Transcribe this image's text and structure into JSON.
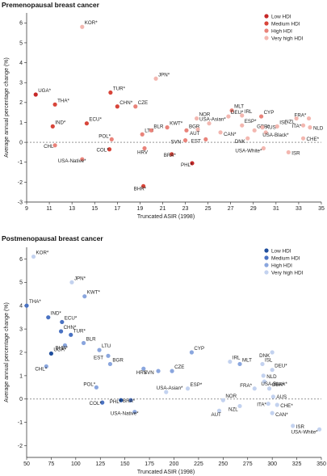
{
  "chart_data": [
    {
      "type": "scatter",
      "title": "Premenopausal breast cancer",
      "xlabel": "Truncated ASIR (1998)",
      "ylabel": "Average annual percentage change (%)",
      "xlim": [
        9,
        35
      ],
      "ylim": [
        -3,
        6.5
      ],
      "xticks": [
        9,
        11,
        13,
        15,
        17,
        19,
        21,
        23,
        25,
        27,
        29,
        31,
        33,
        35
      ],
      "yticks": [
        -3,
        -2,
        -1,
        0,
        1,
        2,
        3,
        4,
        5,
        6
      ],
      "legend_position": "top-right",
      "legend": [
        {
          "name": "Low HDI",
          "color": "#c62828"
        },
        {
          "name": "Medium HDI",
          "color": "#d8453a"
        },
        {
          "name": "High HDI",
          "color": "#e9837a"
        },
        {
          "name": "Very high HDI",
          "color": "#f3b7b0"
        }
      ],
      "points": [
        {
          "label": "KOR*",
          "x": 13.9,
          "y": 5.8,
          "hdi": 3
        },
        {
          "label": "UGA*",
          "x": 9.8,
          "y": 2.4,
          "hdi": 0
        },
        {
          "label": "THA*",
          "x": 11.5,
          "y": 1.9,
          "hdi": 1
        },
        {
          "label": "IND*",
          "x": 11.3,
          "y": 0.8,
          "hdi": 1
        },
        {
          "label": "ECU*",
          "x": 14.3,
          "y": 0.95,
          "hdi": 1
        },
        {
          "label": "TUR*",
          "x": 16.4,
          "y": 2.5,
          "hdi": 1
        },
        {
          "label": "CHN*",
          "x": 17.0,
          "y": 1.8,
          "hdi": 1
        },
        {
          "label": "CZE",
          "x": 18.6,
          "y": 1.8,
          "hdi": 2
        },
        {
          "label": "JPN*",
          "x": 20.4,
          "y": 3.2,
          "hdi": 3
        },
        {
          "label": "CHL",
          "x": 11.5,
          "y": -0.15,
          "hdi": 2
        },
        {
          "label": "USA-Native*",
          "x": 13.9,
          "y": -0.85,
          "hdi": 2
        },
        {
          "label": "COL*",
          "x": 16.3,
          "y": -0.35,
          "hdi": 1
        },
        {
          "label": "POL*",
          "x": 16.5,
          "y": 0.15,
          "hdi": 2
        },
        {
          "label": "LTU",
          "x": 19.2,
          "y": 0.4,
          "hdi": 2
        },
        {
          "label": "BLR",
          "x": 20.0,
          "y": 0.6,
          "hdi": 2
        },
        {
          "label": "HRV",
          "x": 19.4,
          "y": -0.3,
          "hdi": 2
        },
        {
          "label": "KWT*",
          "x": 21.4,
          "y": 0.75,
          "hdi": 2
        },
        {
          "label": "BRA*",
          "x": 21.8,
          "y": -0.6,
          "hdi": 1
        },
        {
          "label": "BHR*",
          "x": 19.3,
          "y": -2.2,
          "hdi": 1
        },
        {
          "label": "BGR",
          "x": 23.1,
          "y": 0.6,
          "hdi": 2
        },
        {
          "label": "NOR",
          "x": 24.0,
          "y": 1.2,
          "hdi": 3
        },
        {
          "label": "SVN",
          "x": 23.0,
          "y": 0.1,
          "hdi": 2
        },
        {
          "label": "AUT",
          "x": 24.1,
          "y": 0.65,
          "hdi": 3
        },
        {
          "label": "EST",
          "x": 24.8,
          "y": 0.15,
          "hdi": 2
        },
        {
          "label": "PHL*",
          "x": 23.6,
          "y": -1.05,
          "hdi": 0
        },
        {
          "label": "MLT",
          "x": 27.1,
          "y": 1.6,
          "hdi": 2
        },
        {
          "label": "DEU*",
          "x": 26.8,
          "y": 1.3,
          "hdi": 3
        },
        {
          "label": "IRL",
          "x": 28.0,
          "y": 1.35,
          "hdi": 3
        },
        {
          "label": "USA-Asian*",
          "x": 25.1,
          "y": 0.95,
          "hdi": 3
        },
        {
          "label": "CAN*",
          "x": 26.1,
          "y": 0.5,
          "hdi": 3
        },
        {
          "label": "ESP*",
          "x": 28.0,
          "y": 0.85,
          "hdi": 3
        },
        {
          "label": "GBR*",
          "x": 29.1,
          "y": 0.6,
          "hdi": 3
        },
        {
          "label": "DNK",
          "x": 28.5,
          "y": 0.2,
          "hdi": 3
        },
        {
          "label": "CYP",
          "x": 29.7,
          "y": 1.3,
          "hdi": 2
        },
        {
          "label": "AUS",
          "x": 29.8,
          "y": 0.75,
          "hdi": 3
        },
        {
          "label": "ISL",
          "x": 31.1,
          "y": 0.8,
          "hdi": 3
        },
        {
          "label": "USA-Black*",
          "x": 30.1,
          "y": 0.5,
          "hdi": 3
        },
        {
          "label": "USA-White*",
          "x": 29.9,
          "y": -0.3,
          "hdi": 3
        },
        {
          "label": "NZL",
          "x": 32.8,
          "y": 1.2,
          "hdi": 3
        },
        {
          "label": "FRA*",
          "x": 33.9,
          "y": 1.2,
          "hdi": 3
        },
        {
          "label": "ITA*",
          "x": 33.4,
          "y": 0.85,
          "hdi": 3
        },
        {
          "label": "NLD",
          "x": 34.0,
          "y": 0.75,
          "hdi": 3
        },
        {
          "label": "CHE*",
          "x": 33.4,
          "y": 0.2,
          "hdi": 3
        },
        {
          "label": "ISR",
          "x": 32.1,
          "y": -0.5,
          "hdi": 3
        }
      ]
    },
    {
      "type": "scatter",
      "title": "Postmenopausal breast cancer",
      "xlabel": "Truncated ASIR (1998)",
      "ylabel": "Average annual percentage change (%)",
      "xlim": [
        50,
        350
      ],
      "ylim": [
        -2.5,
        6.5
      ],
      "xticks": [
        50,
        75,
        100,
        125,
        150,
        175,
        200,
        225,
        250,
        275,
        300,
        325,
        350
      ],
      "yticks": [
        -2,
        -1,
        0,
        1,
        2,
        3,
        4,
        5,
        6
      ],
      "legend_position": "top-right",
      "legend": [
        {
          "name": "Low HDI",
          "color": "#1f4e9c"
        },
        {
          "name": "Medium HDI",
          "color": "#4a72c2"
        },
        {
          "name": "High HDI",
          "color": "#8aa6de"
        },
        {
          "name": "Very high HDI",
          "color": "#c3d2ef"
        }
      ],
      "points": [
        {
          "label": "KOR*",
          "x": 57,
          "y": 6.1,
          "hdi": 3
        },
        {
          "label": "THA*",
          "x": 50,
          "y": 4.0,
          "hdi": 1
        },
        {
          "label": "JPN*",
          "x": 96,
          "y": 5.0,
          "hdi": 3
        },
        {
          "label": "KWT*",
          "x": 109,
          "y": 4.4,
          "hdi": 2
        },
        {
          "label": "IND*",
          "x": 72,
          "y": 3.5,
          "hdi": 1
        },
        {
          "label": "ECU*",
          "x": 86,
          "y": 3.3,
          "hdi": 1
        },
        {
          "label": "CHN*",
          "x": 85,
          "y": 2.9,
          "hdi": 1
        },
        {
          "label": "TUR*",
          "x": 95,
          "y": 2.75,
          "hdi": 1
        },
        {
          "label": "BLR",
          "x": 108,
          "y": 2.4,
          "hdi": 2
        },
        {
          "label": "UGA*",
          "x": 75,
          "y": 1.95,
          "hdi": 0
        },
        {
          "label": "BHR*",
          "x": 89,
          "y": 2.3,
          "hdi": 2
        },
        {
          "label": "CHL*",
          "x": 70,
          "y": 1.4,
          "hdi": 2
        },
        {
          "label": "LTU",
          "x": 124,
          "y": 2.1,
          "hdi": 2
        },
        {
          "label": "EST",
          "x": 133,
          "y": 1.85,
          "hdi": 2
        },
        {
          "label": "BGR",
          "x": 135,
          "y": 1.5,
          "hdi": 2
        },
        {
          "label": "HRV",
          "x": 169,
          "y": 1.3,
          "hdi": 2
        },
        {
          "label": "SVN",
          "x": 184,
          "y": 1.2,
          "hdi": 2
        },
        {
          "label": "CZE",
          "x": 198,
          "y": 1.2,
          "hdi": 2
        },
        {
          "label": "CYP",
          "x": 218,
          "y": 2.0,
          "hdi": 2
        },
        {
          "label": "POL*",
          "x": 121,
          "y": 0.5,
          "hdi": 2
        },
        {
          "label": "COL*",
          "x": 127,
          "y": -0.15,
          "hdi": 1
        },
        {
          "label": "PHL*",
          "x": 146,
          "y": -0.05,
          "hdi": 0
        },
        {
          "label": "BRA*",
          "x": 156,
          "y": -0.05,
          "hdi": 1
        },
        {
          "label": "USA-Native*",
          "x": 160,
          "y": -0.55,
          "hdi": 2
        },
        {
          "label": "USA-Asian*",
          "x": 192,
          "y": 0.3,
          "hdi": 3
        },
        {
          "label": "ESP*",
          "x": 214,
          "y": 0.45,
          "hdi": 3
        },
        {
          "label": "NOR",
          "x": 250,
          "y": -0.05,
          "hdi": 3
        },
        {
          "label": "AUT",
          "x": 246,
          "y": -0.5,
          "hdi": 3
        },
        {
          "label": "IRL",
          "x": 257,
          "y": 1.6,
          "hdi": 3
        },
        {
          "label": "MLT",
          "x": 267,
          "y": 1.5,
          "hdi": 2
        },
        {
          "label": "NZL",
          "x": 267,
          "y": -0.3,
          "hdi": 3
        },
        {
          "label": "DNK",
          "x": 300,
          "y": 2.0,
          "hdi": 3
        },
        {
          "label": "ISL",
          "x": 290,
          "y": 1.5,
          "hdi": 3
        },
        {
          "label": "DEU*",
          "x": 300,
          "y": 1.25,
          "hdi": 3
        },
        {
          "label": "NLD",
          "x": 291,
          "y": 1.0,
          "hdi": 3
        },
        {
          "label": "USA-Black*",
          "x": 292,
          "y": 0.75,
          "hdi": 3
        },
        {
          "label": "FRA*",
          "x": 282,
          "y": 0.45,
          "hdi": 3
        },
        {
          "label": "GBR*",
          "x": 297,
          "y": 0.45,
          "hdi": 3
        },
        {
          "label": "AUS",
          "x": 301,
          "y": 0.1,
          "hdi": 3
        },
        {
          "label": "ITA*",
          "x": 296,
          "y": -0.2,
          "hdi": 3
        },
        {
          "label": "CHE*",
          "x": 305,
          "y": -0.25,
          "hdi": 3
        },
        {
          "label": "CAN*",
          "x": 300,
          "y": -0.6,
          "hdi": 3
        },
        {
          "label": "ISR",
          "x": 321,
          "y": -1.15,
          "hdi": 3
        },
        {
          "label": "USA-White*",
          "x": 348,
          "y": -1.3,
          "hdi": 3
        }
      ]
    }
  ]
}
